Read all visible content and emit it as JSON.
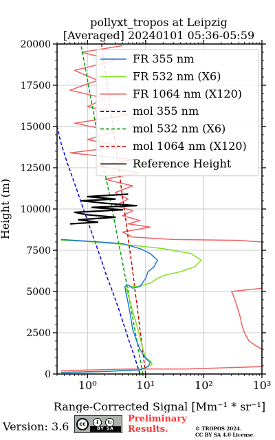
{
  "title_line1": "pollyxt_tropos at Leipzig",
  "title_line2": "[Averaged] 20240101 05:36-05:59",
  "xlabel": "Range-Corrected Signal [Mm⁻¹ * sr⁻¹]",
  "ylabel": "Height (m)",
  "footer": {
    "version": "Version: 3.6",
    "cc_badge": "cc-by-sa-badge",
    "cc_strip": "BY   SA",
    "preliminary_line1": "Preliminary",
    "preliminary_line2": "Results.",
    "copyright_line1": "© TROPOS 2024.",
    "copyright_line2": "CC BY SA 4.0 License."
  },
  "colors": {
    "fr355": "#1f77d4",
    "fr532": "#80e020",
    "fr1064": "#f06060",
    "mol355": "#0000dd",
    "mol532": "#00a000",
    "mol1064": "#cc0000",
    "ref": "#000000"
  },
  "chart_data": {
    "type": "line",
    "title": "pollyxt_tropos at Leipzig [Averaged] 20240101 05:36-05:59",
    "xlabel": "Range-Corrected Signal [Mm^-1 * sr^-1]",
    "ylabel": "Height (m)",
    "xscale": "log",
    "xlim": [
      0.3,
      1000
    ],
    "ylim": [
      0,
      20000
    ],
    "xticks": [
      1,
      10,
      100,
      1000
    ],
    "xtick_labels": [
      "10⁰",
      "10¹",
      "10²",
      "10³"
    ],
    "yticks": [
      0,
      2500,
      5000,
      7500,
      10000,
      12500,
      15000,
      17500,
      20000
    ],
    "ytick_labels": [
      "0",
      "2500",
      "5000",
      "7500",
      "10000",
      "12500",
      "15000",
      "17500",
      "20000"
    ],
    "grid": true,
    "legend_position": "top-right",
    "series": [
      {
        "name": "FR 355 nm",
        "style": "solid",
        "color": "#1f77d4",
        "points": [
          [
            0.35,
            100
          ],
          [
            2,
            150
          ],
          [
            8,
            250
          ],
          [
            11,
            450
          ],
          [
            12,
            700
          ],
          [
            10,
            950
          ],
          [
            8,
            1500
          ],
          [
            7,
            2000
          ],
          [
            6,
            2700
          ],
          [
            5.5,
            3500
          ],
          [
            5,
            4300
          ],
          [
            4.6,
            4900
          ],
          [
            4.4,
            5300
          ],
          [
            5,
            5400
          ],
          [
            6,
            5200
          ],
          [
            8,
            5300
          ],
          [
            10,
            5800
          ],
          [
            11,
            6200
          ],
          [
            14,
            6500
          ],
          [
            16,
            6900
          ],
          [
            12,
            7300
          ],
          [
            8,
            7600
          ],
          [
            4,
            7900
          ],
          [
            1,
            8050
          ],
          [
            0.35,
            8150
          ]
        ]
      },
      {
        "name": "FR 532 nm (X6)",
        "style": "solid",
        "color": "#80e020",
        "points": [
          [
            0.35,
            80
          ],
          [
            2,
            150
          ],
          [
            9,
            300
          ],
          [
            13,
            600
          ],
          [
            12,
            800
          ],
          [
            10,
            1000
          ],
          [
            9,
            1500
          ],
          [
            8,
            2200
          ],
          [
            7,
            3000
          ],
          [
            6,
            3800
          ],
          [
            5.3,
            4500
          ],
          [
            4.8,
            5000
          ],
          [
            4.6,
            5200
          ],
          [
            5.5,
            5300
          ],
          [
            7,
            5300
          ],
          [
            12,
            5500
          ],
          [
            16,
            5800
          ],
          [
            22,
            6000
          ],
          [
            40,
            6200
          ],
          [
            70,
            6500
          ],
          [
            90,
            6900
          ],
          [
            60,
            7300
          ],
          [
            20,
            7600
          ],
          [
            6,
            7800
          ],
          [
            2,
            7950
          ],
          [
            0.8,
            8050
          ],
          [
            0.35,
            8100
          ]
        ]
      },
      {
        "name": "FR 1064 nm (X120)",
        "style": "solid",
        "color": "#f06060",
        "points": [
          [
            0.35,
            200
          ],
          [
            5,
            300
          ],
          [
            50,
            300
          ],
          [
            1000,
            450
          ],
          [
            1000,
            1500
          ],
          [
            800,
            1700
          ],
          [
            600,
            2000
          ],
          [
            500,
            2500
          ],
          [
            450,
            3000
          ],
          [
            420,
            3500
          ],
          [
            380,
            4000
          ],
          [
            350,
            4400
          ],
          [
            320,
            4800
          ],
          [
            300,
            5000
          ],
          [
            1000,
            5200
          ],
          [
            1000,
            8000
          ],
          [
            400,
            8100
          ],
          [
            30,
            8150
          ],
          [
            6,
            8300
          ],
          [
            4,
            8600
          ],
          [
            12,
            8900
          ],
          [
            5,
            9100
          ],
          [
            8,
            9300
          ],
          [
            4,
            9600
          ],
          [
            6,
            9900
          ],
          [
            3,
            10200
          ],
          [
            5,
            10600
          ],
          [
            3,
            11000
          ],
          [
            6,
            11400
          ],
          [
            2,
            11800
          ],
          [
            8,
            12200
          ],
          [
            1.5,
            12600
          ],
          [
            6,
            13000
          ],
          [
            0.5,
            13400
          ],
          [
            4,
            13800
          ],
          [
            1,
            14200
          ],
          [
            3,
            14700
          ],
          [
            0.6,
            15200
          ],
          [
            5,
            15700
          ],
          [
            1,
            16200
          ],
          [
            2,
            16700
          ],
          [
            0.5,
            17200
          ],
          [
            1.5,
            17800
          ],
          [
            0.6,
            18400
          ],
          [
            3,
            19000
          ],
          [
            0.8,
            19500
          ],
          [
            4,
            19900
          ]
        ]
      },
      {
        "name": "mol 355 nm",
        "style": "dashed",
        "color": "#0000dd",
        "points": [
          [
            8,
            0
          ],
          [
            6.5,
            1000
          ],
          [
            5.2,
            2000
          ],
          [
            4.2,
            3000
          ],
          [
            3.4,
            4000
          ],
          [
            2.7,
            5000
          ],
          [
            2.1,
            6000
          ],
          [
            1.7,
            7000
          ],
          [
            1.35,
            8000
          ],
          [
            1.07,
            9000
          ],
          [
            0.85,
            10000
          ],
          [
            0.68,
            11000
          ],
          [
            0.54,
            12000
          ],
          [
            0.43,
            13000
          ],
          [
            0.35,
            14000
          ],
          [
            0.3,
            15000
          ]
        ]
      },
      {
        "name": "mol 532 nm (X6)",
        "style": "dashed",
        "color": "#00a000",
        "points": [
          [
            9,
            0
          ],
          [
            8,
            1000
          ],
          [
            7.1,
            2000
          ],
          [
            6.3,
            3000
          ],
          [
            5.6,
            4000
          ],
          [
            5,
            5000
          ],
          [
            4.4,
            6000
          ],
          [
            3.9,
            7000
          ],
          [
            3.4,
            8000
          ],
          [
            3,
            9000
          ],
          [
            2.65,
            10000
          ],
          [
            2.35,
            11000
          ],
          [
            2.05,
            12000
          ],
          [
            1.8,
            13000
          ],
          [
            1.6,
            14000
          ],
          [
            1.4,
            15000
          ],
          [
            1.25,
            16000
          ],
          [
            1.1,
            17000
          ],
          [
            0.98,
            18000
          ],
          [
            0.87,
            19000
          ],
          [
            0.77,
            20000
          ]
        ]
      },
      {
        "name": "mol 1064 nm (X120)",
        "style": "dashed",
        "color": "#cc0000",
        "points": [
          [
            10,
            0
          ],
          [
            9.2,
            1000
          ],
          [
            8.5,
            2000
          ],
          [
            7.8,
            3000
          ],
          [
            7.2,
            4000
          ],
          [
            6.6,
            5000
          ],
          [
            6.1,
            6000
          ],
          [
            5.6,
            7000
          ],
          [
            5.1,
            8000
          ],
          [
            4.7,
            9000
          ],
          [
            4.3,
            10000
          ],
          [
            3.9,
            11000
          ],
          [
            3.6,
            12000
          ],
          [
            3.3,
            13000
          ],
          [
            3,
            14000
          ],
          [
            2.75,
            15000
          ],
          [
            2.5,
            16000
          ],
          [
            2.3,
            17000
          ],
          [
            2.1,
            18000
          ],
          [
            1.9,
            19000
          ],
          [
            1.75,
            20000
          ]
        ]
      },
      {
        "name": "Reference Height",
        "style": "solid",
        "color": "#000000",
        "points": [
          [
            0.5,
            9100
          ],
          [
            1.5,
            9200
          ],
          [
            0.7,
            9350
          ],
          [
            3,
            9500
          ],
          [
            1,
            9650
          ],
          [
            0.6,
            9800
          ],
          [
            4,
            9950
          ],
          [
            1.2,
            10100
          ],
          [
            7,
            10200
          ],
          [
            2,
            10350
          ],
          [
            0.8,
            10500
          ],
          [
            3,
            10600
          ],
          [
            1,
            10750
          ],
          [
            5,
            10900
          ]
        ]
      }
    ]
  }
}
